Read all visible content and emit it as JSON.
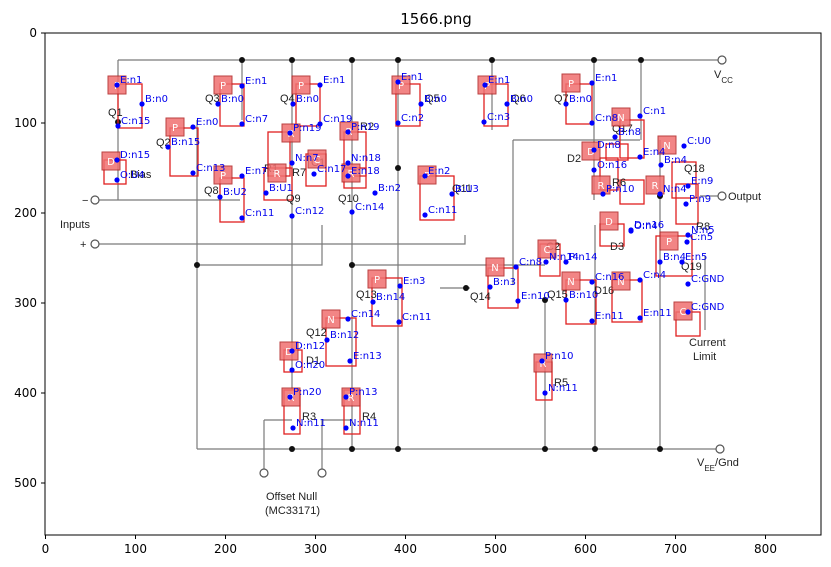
{
  "title": "1566.png",
  "x_ticks": [
    "0",
    "100",
    "200",
    "300",
    "400",
    "500",
    "600",
    "700",
    "800"
  ],
  "y_ticks": [
    "0",
    "100",
    "200",
    "300",
    "400",
    "500"
  ],
  "circuit_labels": [
    {
      "id": "vcc",
      "text": "V",
      "sub": "CC"
    },
    {
      "id": "vee",
      "text": "V",
      "sub": "EE",
      "tail": "/Gnd"
    },
    {
      "id": "output",
      "text": "Output"
    },
    {
      "id": "inputs",
      "text": "Inputs"
    },
    {
      "id": "minus",
      "text": "−"
    },
    {
      "id": "plus",
      "text": "+"
    },
    {
      "id": "q1",
      "text": "Q1"
    },
    {
      "id": "q2",
      "text": "Q2"
    },
    {
      "id": "q3",
      "text": "Q3"
    },
    {
      "id": "q4",
      "text": "Q4"
    },
    {
      "id": "q5",
      "text": "Q5"
    },
    {
      "id": "q6",
      "text": "Q6"
    },
    {
      "id": "q7",
      "text": "Q7"
    },
    {
      "id": "q8",
      "text": "Q8"
    },
    {
      "id": "q9",
      "text": "Q9"
    },
    {
      "id": "q10",
      "text": "Q10"
    },
    {
      "id": "q11",
      "text": "Q11"
    },
    {
      "id": "q12",
      "text": "Q12"
    },
    {
      "id": "q13",
      "text": "Q13"
    },
    {
      "id": "q14",
      "text": "Q14"
    },
    {
      "id": "q15",
      "text": "Q15"
    },
    {
      "id": "q16",
      "text": "D16"
    },
    {
      "id": "q17",
      "text": "Q17"
    },
    {
      "id": "q18",
      "text": "Q18"
    },
    {
      "id": "q19",
      "text": "Q19"
    },
    {
      "id": "r1",
      "text": "R1"
    },
    {
      "id": "r2",
      "text": "R2"
    },
    {
      "id": "r3",
      "text": "R3"
    },
    {
      "id": "r4",
      "text": "R4"
    },
    {
      "id": "r5",
      "text": "R5"
    },
    {
      "id": "r6",
      "text": "R6"
    },
    {
      "id": "r7",
      "text": "R7"
    },
    {
      "id": "r8",
      "text": "R8"
    },
    {
      "id": "c1",
      "text": "C1"
    },
    {
      "id": "c2",
      "text": "C2"
    },
    {
      "id": "d1",
      "text": "D1"
    },
    {
      "id": "d2",
      "text": "D2"
    },
    {
      "id": "d3",
      "text": "D3"
    },
    {
      "id": "bias",
      "text": "Bias"
    },
    {
      "id": "cl1",
      "text": "Current"
    },
    {
      "id": "cl2",
      "text": "Limit"
    },
    {
      "id": "on1",
      "text": "Offset Null"
    },
    {
      "id": "on2",
      "text": "(MC33171)"
    }
  ],
  "chips": [
    {
      "id": "c-q1",
      "letter": "P"
    },
    {
      "id": "c-q2",
      "letter": "P"
    },
    {
      "id": "c-q3",
      "letter": "P"
    },
    {
      "id": "c-q4",
      "letter": "P"
    },
    {
      "id": "c-q5",
      "letter": "P"
    },
    {
      "id": "c-q6",
      "letter": "P"
    },
    {
      "id": "c-q7",
      "letter": "P"
    },
    {
      "id": "c-q8",
      "letter": "P"
    },
    {
      "id": "c-r1",
      "letter": "R"
    },
    {
      "id": "c-r2",
      "letter": "R"
    },
    {
      "id": "c-r7",
      "letter": "R"
    },
    {
      "id": "c-c1",
      "letter": "C"
    },
    {
      "id": "c-d15",
      "letter": "D"
    },
    {
      "id": "c-r6a",
      "letter": "R"
    },
    {
      "id": "c-q11",
      "letter": "P"
    },
    {
      "id": "c-q17",
      "letter": "N"
    },
    {
      "id": "c-d2",
      "letter": "D"
    },
    {
      "id": "c-q18",
      "letter": "N"
    },
    {
      "id": "c-r6",
      "letter": "R"
    },
    {
      "id": "c-r8",
      "letter": "R"
    },
    {
      "id": "c-d3",
      "letter": "D"
    },
    {
      "id": "c-q19",
      "letter": "P"
    },
    {
      "id": "c-c2",
      "letter": "C"
    },
    {
      "id": "c-q14",
      "letter": "N"
    },
    {
      "id": "c-q15",
      "letter": "N"
    },
    {
      "id": "c-q16",
      "letter": "N"
    },
    {
      "id": "c-cl",
      "letter": "C"
    },
    {
      "id": "c-q13",
      "letter": "P"
    },
    {
      "id": "c-q12",
      "letter": "N"
    },
    {
      "id": "c-d1",
      "letter": "D"
    },
    {
      "id": "c-r3",
      "letter": "R"
    },
    {
      "id": "c-r4",
      "letter": "R"
    },
    {
      "id": "c-r5",
      "letter": "R"
    }
  ],
  "annotations": [
    "E:n1",
    "B:n0",
    "C:n15",
    "E:n0",
    "B:n15",
    "C:n13",
    "D:n15",
    "O:U4",
    "E:n1",
    "B:n0",
    "C:n7",
    "E:n1",
    "B:n0",
    "C:n19",
    "E:n1",
    "B:n0",
    "C:n2",
    "E:n1",
    "B:n0",
    "C:n3",
    "E:n1",
    "B:n0",
    "C:n8",
    "E:n7",
    "B:U2",
    "C:n11",
    "P:n19",
    "P:n19",
    "N:n18",
    "N:n7",
    "C:n17",
    "E:n18",
    "B:n2",
    "C:n14",
    "B:U1",
    "C:n12",
    "E:n2",
    "B:U3",
    "C:n11",
    "C:n1",
    "B:n8",
    "E:n4",
    "D:n8",
    "O:n16",
    "C:U0",
    "B:n4",
    "E:n9",
    "P:n10",
    "N:n4",
    "P:n9",
    "N:n5",
    "D:n16",
    "O:n4",
    "C:n5",
    "C:n8",
    "N:n14",
    "B:n3",
    "E:n10",
    "C:n16",
    "B:n10",
    "E:n11",
    "C:n4",
    "B:n4",
    "E:n5",
    "C:GND",
    "C:GND",
    "E:n11",
    "E:n3",
    "B:n14",
    "C:n11",
    "C:n14",
    "B:n12",
    "E:n13",
    "D:n12",
    "O:n20",
    "P:n20",
    "N:n11",
    "P:n13",
    "N:n11",
    "P:n10",
    "N:n11",
    "P:n14"
  ]
}
